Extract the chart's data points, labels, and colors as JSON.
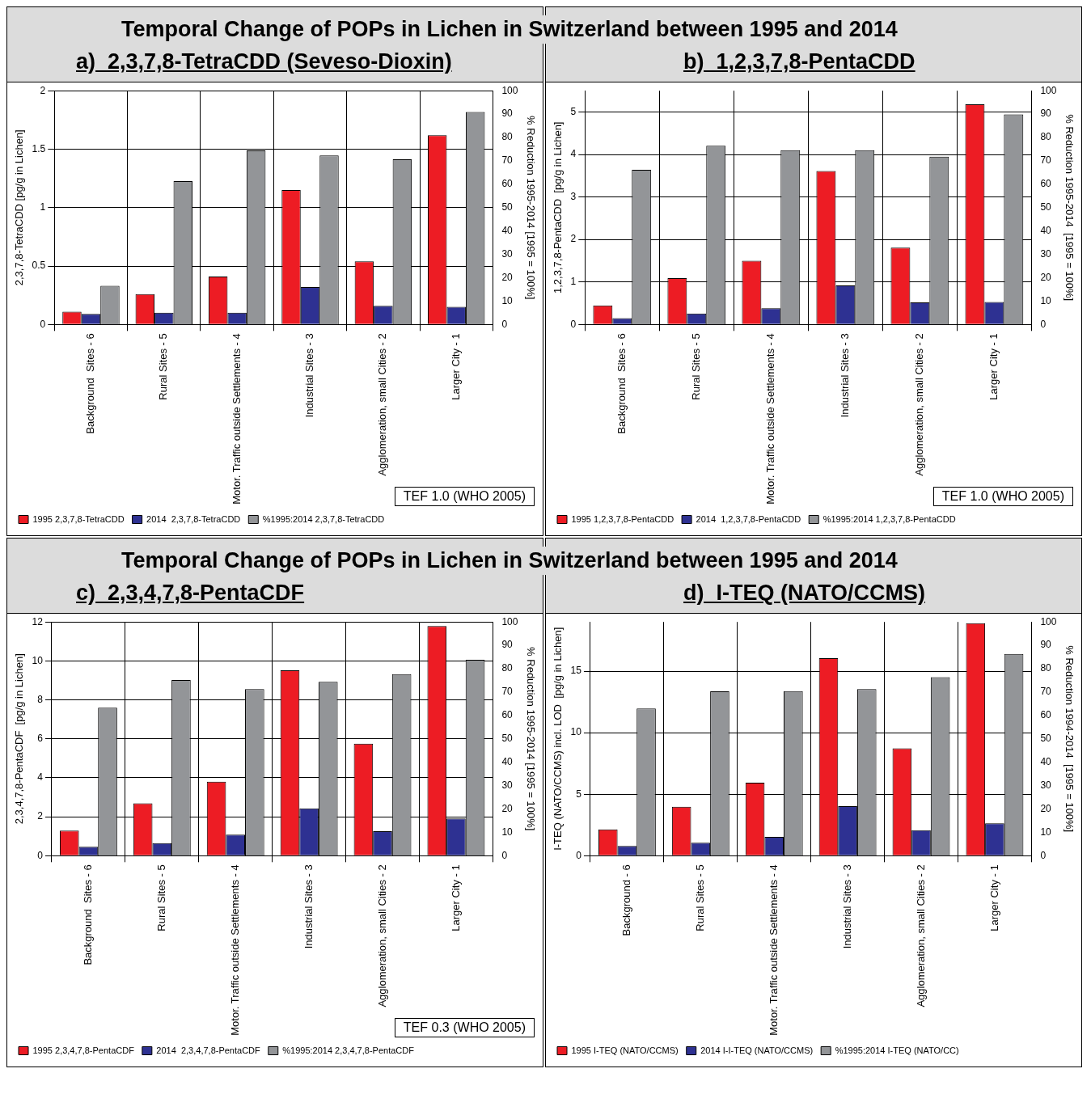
{
  "chart_data": [
    {
      "type": "bar",
      "title": "Temporal Change of POPs in Lichen in Switzerland between 1995 and 2014",
      "subtitle": "a)  2,3,7,8-TetraCDD (Seveso-Dioxin)",
      "ylabel": "2,3,7,8-TetraCDD [pg/g in Lichen]",
      "y2label": "% Reduction 1995-2014 [1995 = 100%]",
      "categories": [
        "Background  Sites - 6",
        "Rural Sites - 5",
        "Motor. Traffic outside Settlements - 4",
        "Industrial Sites - 3",
        "Agglomeration, small Cities - 2",
        "Larger City - 1"
      ],
      "series": [
        {
          "name": "1995 2,3,7,8-TetraCDD",
          "color": "#ed1c24",
          "values": [
            0.11,
            0.26,
            0.41,
            1.15,
            0.54,
            1.62
          ]
        },
        {
          "name": "2014  2,3,7,8-TetraCDD",
          "color": "#2e3192",
          "values": [
            0.09,
            0.1,
            0.1,
            0.32,
            0.16,
            0.15
          ]
        },
        {
          "name": "%1995:2014 2,3,7,8-TetraCDD",
          "color": "#939598",
          "axis": "y2",
          "values": [
            16.5,
            61.3,
            74.5,
            72.3,
            70.7,
            90.9
          ]
        }
      ],
      "ylim": [
        0,
        2
      ],
      "yticks": [
        0,
        0.5,
        1,
        1.5,
        2
      ],
      "y2lim": [
        0,
        100
      ],
      "y2ticks": [
        0,
        10,
        20,
        30,
        40,
        50,
        60,
        70,
        80,
        90,
        100
      ],
      "grid": true,
      "legend": "bottom left",
      "annotations": [
        "TEF 1.0 (WHO 2005)"
      ]
    },
    {
      "type": "bar",
      "subtitle": "b)  1,2,3,7,8-PentaCDD",
      "ylabel": "1,2,3,7,8-PentaCDD  [pg/g in Lichen]",
      "y2label": "% Reduction 1995-2014  [1995 = 100%]",
      "categories": [
        "Background  Sites - 6",
        "Rural Sites - 5",
        "Motor. Traffic outside Settlements - 4",
        "Industrial Sites - 3",
        "Agglomeration, small Cities - 2",
        "Larger City - 1"
      ],
      "series": [
        {
          "name": "1995 1,2,3,7,8-PentaCDD",
          "color": "#ed1c24",
          "values": [
            0.45,
            1.09,
            1.5,
            3.61,
            1.81,
            5.18
          ]
        },
        {
          "name": "2014  1,2,3,7,8-PentaCDD",
          "color": "#2e3192",
          "values": [
            0.15,
            0.26,
            0.38,
            0.92,
            0.52,
            0.53
          ]
        },
        {
          "name": "%1995:2014 1,2,3,7,8-PentaCDD",
          "color": "#939598",
          "axis": "y2",
          "values": [
            66.2,
            76.5,
            74.6,
            74.6,
            71.8,
            89.9
          ]
        }
      ],
      "ylim": [
        0,
        5.5
      ],
      "yticks": [
        0,
        1,
        2,
        3,
        4,
        5
      ],
      "y2lim": [
        0,
        100
      ],
      "y2ticks": [
        0,
        10,
        20,
        30,
        40,
        50,
        60,
        70,
        80,
        90,
        100
      ],
      "grid": true,
      "legend": "bottom left",
      "annotations": [
        "TEF 1.0 (WHO 2005)"
      ]
    },
    {
      "type": "bar",
      "title": "Temporal Change of POPs in Lichen in Switzerland between 1995 and 2014",
      "subtitle": "c)  2,3,4,7,8-PentaCDF",
      "ylabel": "2,3,4,7,8-PentaCDF  [pg/g in Lichen]",
      "y2label": "% Reduction 1995-2014 [1995 = 100%]",
      "categories": [
        "Background  Sites - 6",
        "Rural Sites - 5",
        "Motor. Traffic outside Settlements - 4",
        "Industrial Sites - 3",
        "Agglomeration, small Cities - 2",
        "Larger City - 1"
      ],
      "series": [
        {
          "name": "1995 2,3,4,7,8-PentaCDF",
          "color": "#ed1c24",
          "values": [
            1.29,
            2.69,
            3.8,
            9.52,
            5.75,
            11.79
          ]
        },
        {
          "name": "2014  2,3,4,7,8-PentaCDF",
          "color": "#2e3192",
          "values": [
            0.46,
            0.65,
            1.08,
            2.43,
            1.26,
            1.91
          ]
        },
        {
          "name": "%1995:2014 2,3,4,7,8-PentaCDF",
          "color": "#939598",
          "axis": "y2",
          "values": [
            63.3,
            75.2,
            71.3,
            74.4,
            77.7,
            83.8
          ]
        }
      ],
      "ylim": [
        0,
        12
      ],
      "yticks": [
        0,
        2,
        4,
        6,
        8,
        10,
        12
      ],
      "y2lim": [
        0,
        100
      ],
      "y2ticks": [
        0,
        10,
        20,
        30,
        40,
        50,
        60,
        70,
        80,
        90,
        100
      ],
      "grid": true,
      "legend": "bottom left",
      "annotations": [
        "TEF 0.3 (WHO 2005)"
      ]
    },
    {
      "type": "bar",
      "subtitle": "d)  I-TEQ (NATO/CCMS)",
      "ylabel": "I-TEQ (NATO/CCMS) incl. LOD  [pg/g in Lichen]",
      "y2label": "% Reduction 1994-2014  [1995 = 100%]",
      "categories": [
        "Background - 6",
        "Rural Sites - 5",
        "Motor. Traffic outside Settlements - 4",
        "Industrial Sites - 3",
        "Agglomeration, small Cities - 2",
        "Larger City - 1"
      ],
      "series": [
        {
          "name": "1995 I-TEQ (NATO/CCMS)",
          "color": "#ed1c24",
          "values": [
            2.14,
            3.98,
            5.94,
            16.05,
            8.72,
            18.9
          ]
        },
        {
          "name": "2014 I-I-TEQ (NATO/CCMS)",
          "color": "#2e3192",
          "values": [
            0.79,
            1.05,
            1.53,
            4.03,
            2.07,
            2.63
          ]
        },
        {
          "name": "%1995:2014 I-TEQ (NATO/CC)",
          "color": "#939598",
          "axis": "y2",
          "values": [
            63.0,
            70.3,
            70.4,
            71.3,
            76.4,
            86.3
          ]
        }
      ],
      "ylim": [
        0,
        19
      ],
      "yticks": [
        0,
        5,
        10,
        15
      ],
      "y2lim": [
        0,
        100
      ],
      "y2ticks": [
        0,
        10,
        20,
        30,
        40,
        50,
        60,
        70,
        80,
        90,
        100
      ],
      "grid": true,
      "legend": "bottom left"
    }
  ]
}
